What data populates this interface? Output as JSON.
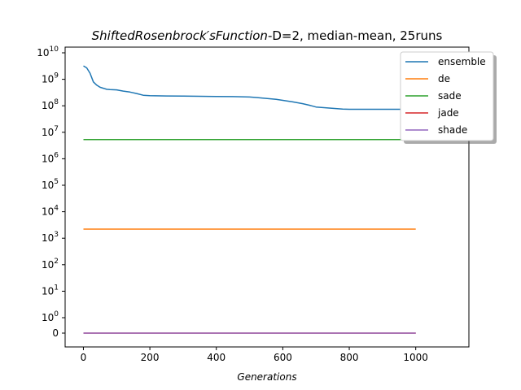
{
  "chart_data": {
    "type": "line",
    "title_italic": "ShiftedRosenbrock′sFunction",
    "title_rest": "-D=2, median-mean, 25runs",
    "xlabel": "Generations",
    "ylabel": "",
    "xlim": [
      -55,
      1160
    ],
    "x_ticks": [
      0,
      200,
      400,
      600,
      800,
      1000
    ],
    "y_scale": "symlog",
    "y_ticks": [
      {
        "value": 0,
        "label": "0"
      },
      {
        "value": 1,
        "label": "10",
        "exp": "0"
      },
      {
        "value": 10,
        "label": "10",
        "exp": "1"
      },
      {
        "value": 100,
        "label": "10",
        "exp": "2"
      },
      {
        "value": 1000,
        "label": "10",
        "exp": "3"
      },
      {
        "value": 10000,
        "label": "10",
        "exp": "4"
      },
      {
        "value": 100000,
        "label": "10",
        "exp": "5"
      },
      {
        "value": 1000000,
        "label": "10",
        "exp": "6"
      },
      {
        "value": 10000000,
        "label": "10",
        "exp": "7"
      },
      {
        "value": 100000000,
        "label": "10",
        "exp": "8"
      },
      {
        "value": 1000000000,
        "label": "10",
        "exp": "9"
      },
      {
        "value": 10000000000,
        "label": "10",
        "exp": "10"
      }
    ],
    "grid": false,
    "legend_position": "top-right",
    "series": [
      {
        "name": "ensemble",
        "color": "#1f77b4",
        "x": [
          0,
          10,
          20,
          30,
          40,
          50,
          60,
          70,
          80,
          100,
          120,
          140,
          160,
          180,
          200,
          250,
          300,
          350,
          400,
          450,
          500,
          520,
          550,
          580,
          600,
          630,
          660,
          680,
          700,
          740,
          780,
          800,
          850,
          900,
          950,
          1000
        ],
        "y": [
          3200000000,
          2700000000,
          1700000000,
          800000000,
          600000000,
          500000000,
          460000000,
          420000000,
          410000000,
          400000000,
          360000000,
          330000000,
          290000000,
          250000000,
          240000000,
          235000000,
          232000000,
          229000000,
          225000000,
          222000000,
          215000000,
          205000000,
          190000000,
          175000000,
          160000000,
          140000000,
          120000000,
          105000000,
          90000000,
          82000000,
          75000000,
          74000000,
          74000000,
          74000000,
          74000000,
          74000000
        ]
      },
      {
        "name": "de",
        "color": "#ff7f0e",
        "x": [
          0,
          1000
        ],
        "y": [
          2200,
          2200
        ]
      },
      {
        "name": "sade",
        "color": "#2ca02c",
        "x": [
          0,
          1000
        ],
        "y": [
          5300000,
          5300000
        ]
      },
      {
        "name": "jade",
        "color": "#d62728",
        "x": [
          0,
          1000
        ],
        "y": [
          0,
          0
        ]
      },
      {
        "name": "shade",
        "color": "#9467bd",
        "x": [
          0,
          1000
        ],
        "y": [
          0,
          0
        ]
      }
    ]
  }
}
